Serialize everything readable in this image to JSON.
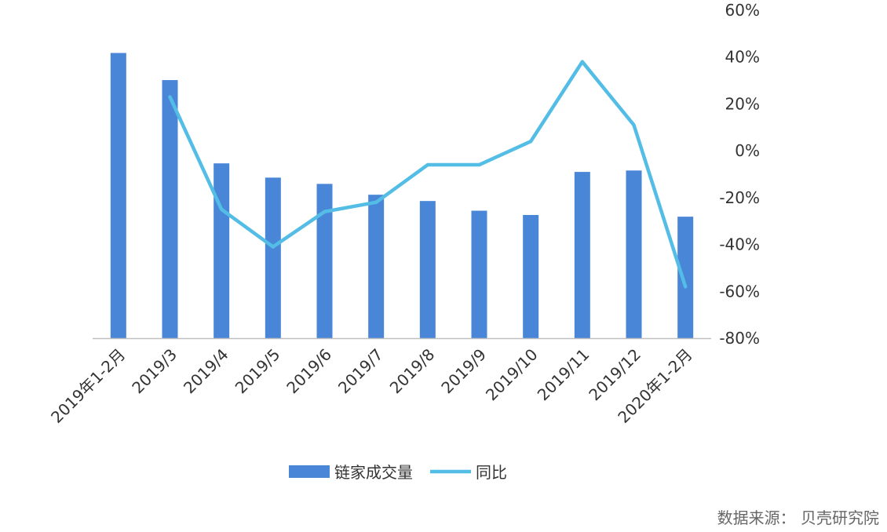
{
  "chart_data": {
    "type": "bar+line",
    "categories": [
      "2019年1-2月",
      "2019/3",
      "2019/4",
      "2019/5",
      "2019/6",
      "2019/7",
      "2019/8",
      "2019/9",
      "2019/10",
      "2019/11",
      "2019/12",
      "2020年1-2月"
    ],
    "series": [
      {
        "name": "链家成交量",
        "type": "bar",
        "axis": "left",
        "color": "#4A86D8",
        "values": [
          100,
          90.5,
          61.3,
          56.3,
          54.1,
          50.3,
          48.1,
          44.7,
          43.2,
          58.3,
          58.8,
          42.6
        ]
      },
      {
        "name": "同比",
        "type": "line",
        "axis": "right",
        "color": "#53BDE6",
        "values": [
          null,
          23,
          -25,
          -41,
          -26,
          -22,
          -6,
          -6,
          4,
          38,
          11,
          -58
        ]
      }
    ],
    "y_right": {
      "ylim": [
        -80,
        60
      ],
      "ticks": [
        "60%",
        "40%",
        "20%",
        "0%",
        "-20%",
        "-40%",
        "-60%",
        "-80%"
      ]
    },
    "y_left": {
      "ylim": [
        0,
        115
      ],
      "visible": false
    },
    "legend_position": "bottom",
    "grid": false
  },
  "source_text": "数据来源： 贝壳研究院"
}
